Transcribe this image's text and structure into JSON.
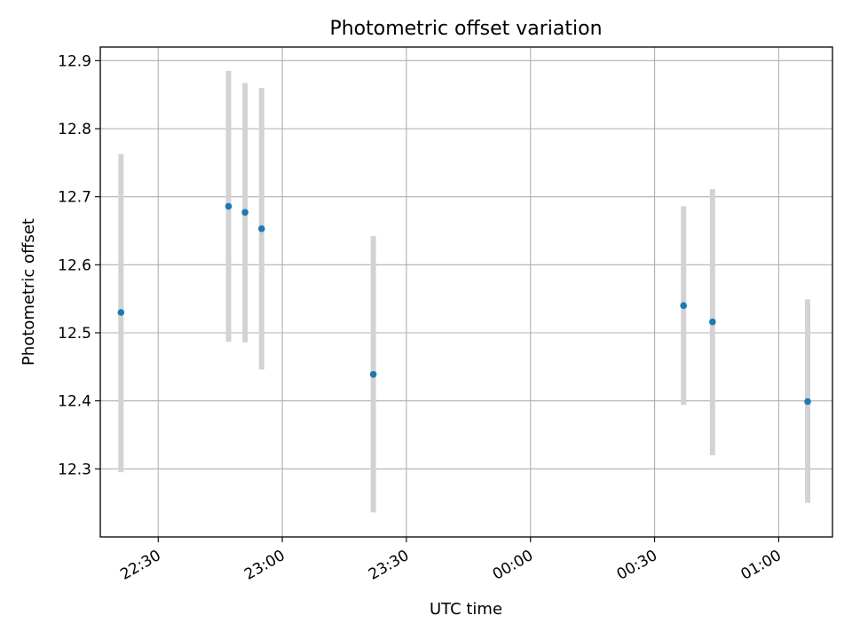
{
  "chart_data": {
    "type": "scatter",
    "title": "Photometric offset variation",
    "xlabel": "UTC time",
    "ylabel": "Photometric offset",
    "x_axis_type": "time",
    "xlim": [
      "22:16",
      "01:13"
    ],
    "ylim": [
      12.2,
      12.92
    ],
    "x_ticks": [
      "22:30",
      "23:00",
      "23:30",
      "00:00",
      "00:30",
      "01:00"
    ],
    "y_ticks": [
      12.3,
      12.4,
      12.5,
      12.6,
      12.7,
      12.8,
      12.9
    ],
    "grid": true,
    "marker_color": "#1f77b4",
    "errorbar_color": "#d3d3d3",
    "points": [
      {
        "x": "22:21",
        "y": 12.53,
        "ylow": 12.295,
        "yhigh": 12.763
      },
      {
        "x": "22:47",
        "y": 12.686,
        "ylow": 12.487,
        "yhigh": 12.885
      },
      {
        "x": "22:51",
        "y": 12.677,
        "ylow": 12.486,
        "yhigh": 12.867
      },
      {
        "x": "22:55",
        "y": 12.653,
        "ylow": 12.446,
        "yhigh": 12.86
      },
      {
        "x": "23:22",
        "y": 12.439,
        "ylow": 12.236,
        "yhigh": 12.642
      },
      {
        "x": "00:37",
        "y": 12.54,
        "ylow": 12.394,
        "yhigh": 12.686
      },
      {
        "x": "00:44",
        "y": 12.516,
        "ylow": 12.32,
        "yhigh": 12.711
      },
      {
        "x": "01:07",
        "y": 12.399,
        "ylow": 12.25,
        "yhigh": 12.549
      }
    ]
  }
}
